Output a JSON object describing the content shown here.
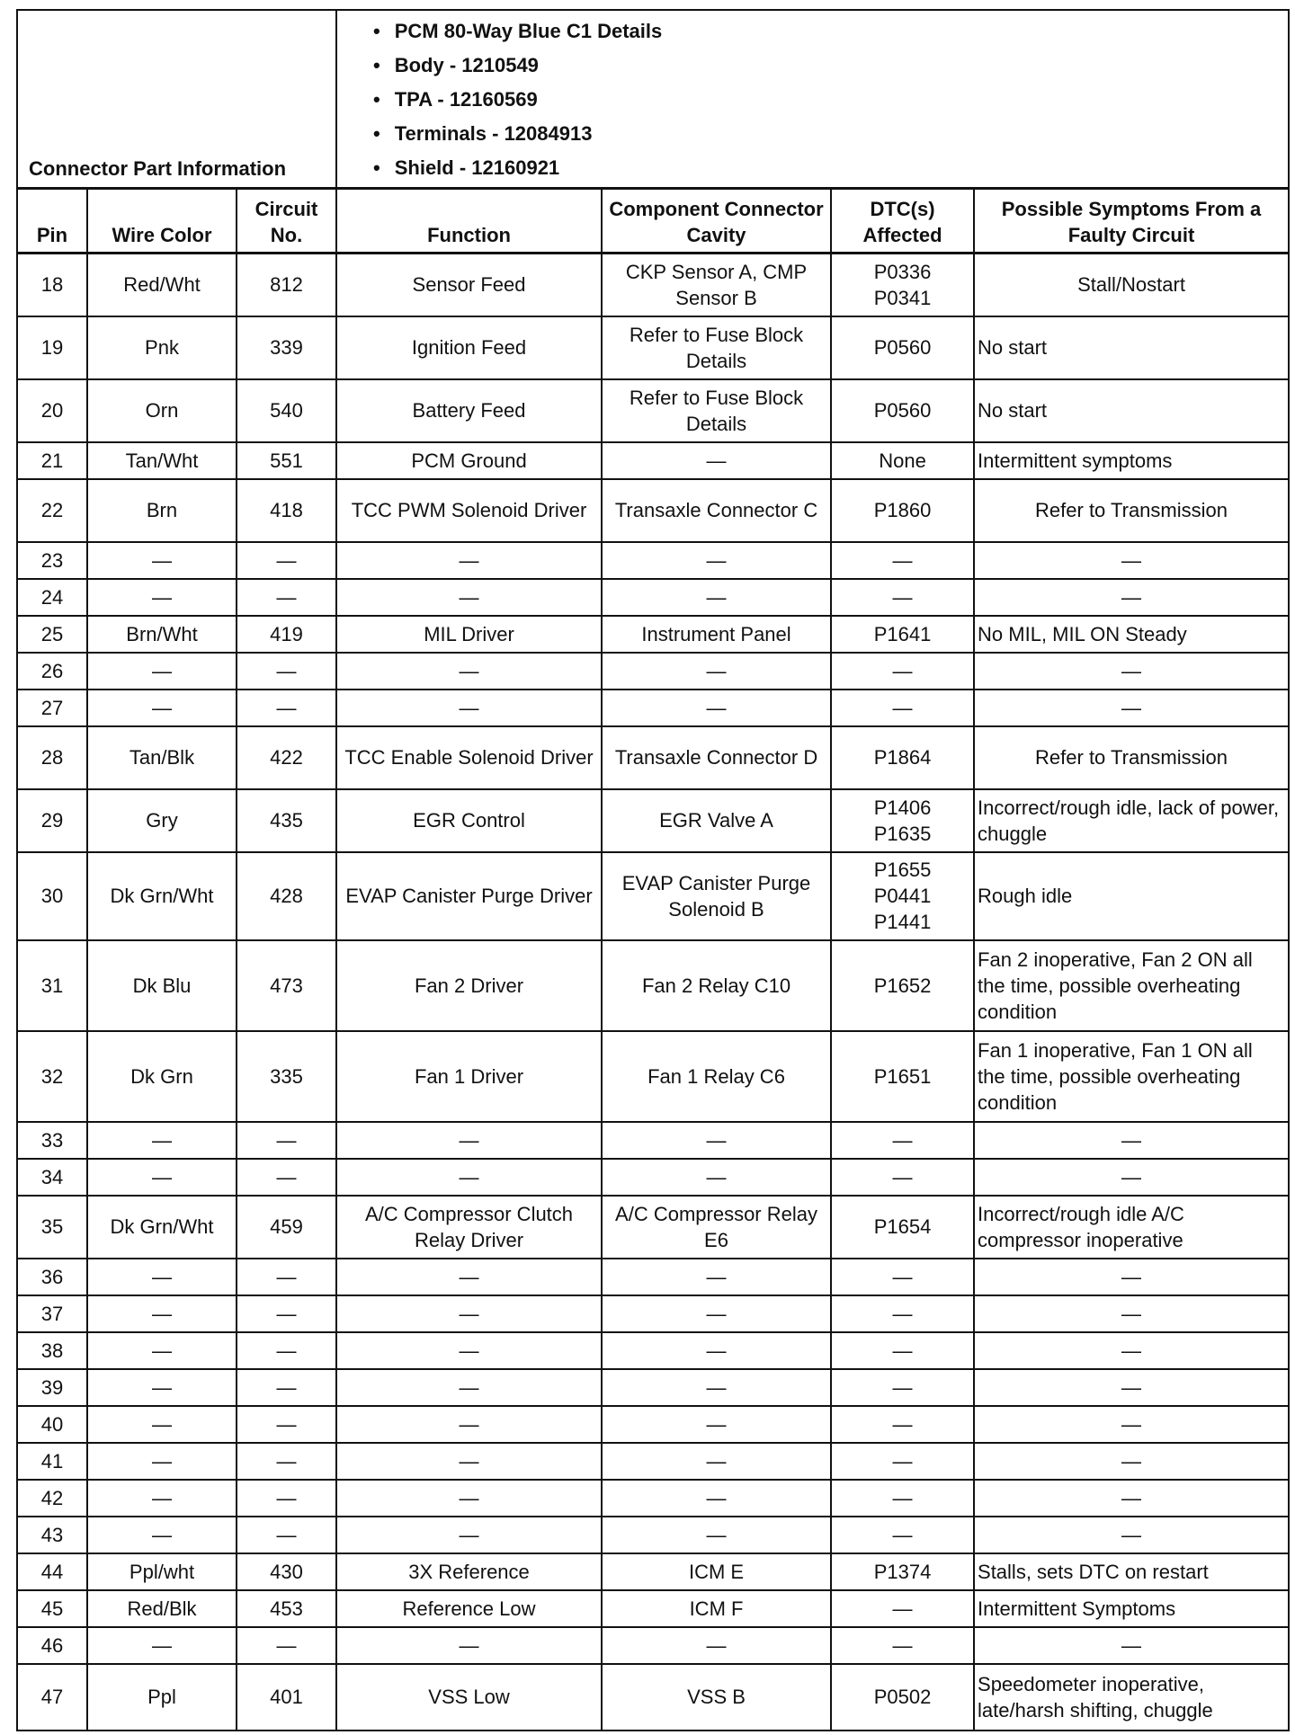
{
  "connector": {
    "label": "Connector Part Information",
    "details": [
      "PCM 80-Way Blue C1 Details",
      "Body - 1210549",
      "TPA - 12160569",
      "Terminals - 12084913",
      "Shield - 12160921"
    ]
  },
  "columns": [
    "Pin",
    "Wire Color",
    "Circuit No.",
    "Function",
    "Component Connector Cavity",
    "DTC(s) Affected",
    "Possible Symptoms From a Faulty Circuit"
  ],
  "rows": [
    {
      "pin": "18",
      "wire": "Red/Wht",
      "circuit": "812",
      "function": "Sensor Feed",
      "component": "CKP Sensor A, CMP Sensor B",
      "dtc": "P0336\nP0341",
      "symptom": "Stall/Nostart"
    },
    {
      "pin": "19",
      "wire": "Pnk",
      "circuit": "339",
      "function": "Ignition Feed",
      "component": "Refer to Fuse Block Details",
      "dtc": "P0560",
      "symptom": "No start"
    },
    {
      "pin": "20",
      "wire": "Orn",
      "circuit": "540",
      "function": "Battery Feed",
      "component": "Refer to Fuse Block Details",
      "dtc": "P0560",
      "symptom": "No start"
    },
    {
      "pin": "21",
      "wire": "Tan/Wht",
      "circuit": "551",
      "function": "PCM Ground",
      "component": "—",
      "dtc": "None",
      "symptom": "Intermittent symptoms"
    },
    {
      "pin": "22",
      "wire": "Brn",
      "circuit": "418",
      "function": "TCC PWM Solenoid Driver",
      "component": "Transaxle Connector C",
      "dtc": "P1860",
      "symptom": "Refer to Transmission"
    },
    {
      "pin": "23",
      "wire": "—",
      "circuit": "—",
      "function": "—",
      "component": "—",
      "dtc": "—",
      "symptom": "—"
    },
    {
      "pin": "24",
      "wire": "—",
      "circuit": "—",
      "function": "—",
      "component": "—",
      "dtc": "—",
      "symptom": "—"
    },
    {
      "pin": "25",
      "wire": "Brn/Wht",
      "circuit": "419",
      "function": "MIL Driver",
      "component": "Instrument Panel",
      "dtc": "P1641",
      "symptom": "No MIL, MIL ON Steady"
    },
    {
      "pin": "26",
      "wire": "—",
      "circuit": "—",
      "function": "—",
      "component": "—",
      "dtc": "—",
      "symptom": "—"
    },
    {
      "pin": "27",
      "wire": "—",
      "circuit": "—",
      "function": "—",
      "component": "—",
      "dtc": "—",
      "symptom": "—"
    },
    {
      "pin": "28",
      "wire": "Tan/Blk",
      "circuit": "422",
      "function": "TCC Enable Solenoid Driver",
      "component": "Transaxle Connector D",
      "dtc": "P1864",
      "symptom": "Refer to Transmission"
    },
    {
      "pin": "29",
      "wire": "Gry",
      "circuit": "435",
      "function": "EGR Control",
      "component": "EGR Valve A",
      "dtc": "P1406\nP1635",
      "symptom": "Incorrect/rough idle, lack of power, chuggle"
    },
    {
      "pin": "30",
      "wire": "Dk Grn/Wht",
      "circuit": "428",
      "function": "EVAP Canister Purge Driver",
      "component": "EVAP Canister Purge Solenoid B",
      "dtc": "P1655\nP0441\nP1441",
      "symptom": "Rough idle"
    },
    {
      "pin": "31",
      "wire": "Dk Blu",
      "circuit": "473",
      "function": "Fan 2 Driver",
      "component": "Fan 2 Relay C10",
      "dtc": "P1652",
      "symptom": "Fan 2 inoperative, Fan 2 ON all the time, possible overheating condition"
    },
    {
      "pin": "32",
      "wire": "Dk Grn",
      "circuit": "335",
      "function": "Fan 1 Driver",
      "component": "Fan 1 Relay C6",
      "dtc": "P1651",
      "symptom": "Fan 1 inoperative, Fan 1 ON all the time, possible overheating condition"
    },
    {
      "pin": "33",
      "wire": "—",
      "circuit": "—",
      "function": "—",
      "component": "—",
      "dtc": "—",
      "symptom": "—"
    },
    {
      "pin": "34",
      "wire": "—",
      "circuit": "—",
      "function": "—",
      "component": "—",
      "dtc": "—",
      "symptom": "—"
    },
    {
      "pin": "35",
      "wire": "Dk Grn/Wht",
      "circuit": "459",
      "function": "A/C Compressor Clutch Relay Driver",
      "component": "A/C Compressor Relay E6",
      "dtc": "P1654",
      "symptom": "Incorrect/rough idle A/C compressor inoperative"
    },
    {
      "pin": "36",
      "wire": "—",
      "circuit": "—",
      "function": "—",
      "component": "—",
      "dtc": "—",
      "symptom": "—"
    },
    {
      "pin": "37",
      "wire": "—",
      "circuit": "—",
      "function": "—",
      "component": "—",
      "dtc": "—",
      "symptom": "—"
    },
    {
      "pin": "38",
      "wire": "—",
      "circuit": "—",
      "function": "—",
      "component": "—",
      "dtc": "—",
      "symptom": "—"
    },
    {
      "pin": "39",
      "wire": "—",
      "circuit": "—",
      "function": "—",
      "component": "—",
      "dtc": "—",
      "symptom": "—"
    },
    {
      "pin": "40",
      "wire": "—",
      "circuit": "—",
      "function": "—",
      "component": "—",
      "dtc": "—",
      "symptom": "—"
    },
    {
      "pin": "41",
      "wire": "—",
      "circuit": "—",
      "function": "—",
      "component": "—",
      "dtc": "—",
      "symptom": "—"
    },
    {
      "pin": "42",
      "wire": "—",
      "circuit": "—",
      "function": "—",
      "component": "—",
      "dtc": "—",
      "symptom": "—"
    },
    {
      "pin": "43",
      "wire": "—",
      "circuit": "—",
      "function": "—",
      "component": "—",
      "dtc": "—",
      "symptom": "—"
    },
    {
      "pin": "44",
      "wire": "Ppl/wht",
      "circuit": "430",
      "function": "3X Reference",
      "component": "ICM E",
      "dtc": "P1374",
      "symptom": "Stalls, sets DTC on restart"
    },
    {
      "pin": "45",
      "wire": "Red/Blk",
      "circuit": "453",
      "function": "Reference Low",
      "component": "ICM F",
      "dtc": "—",
      "symptom": "Intermittent Symptoms"
    },
    {
      "pin": "46",
      "wire": "—",
      "circuit": "—",
      "function": "—",
      "component": "—",
      "dtc": "—",
      "symptom": "—"
    },
    {
      "pin": "47",
      "wire": "Ppl",
      "circuit": "401",
      "function": "VSS Low",
      "component": "VSS B",
      "dtc": "P0502",
      "symptom": "Speedometer inoperative, late/harsh shifting, chuggle"
    }
  ]
}
